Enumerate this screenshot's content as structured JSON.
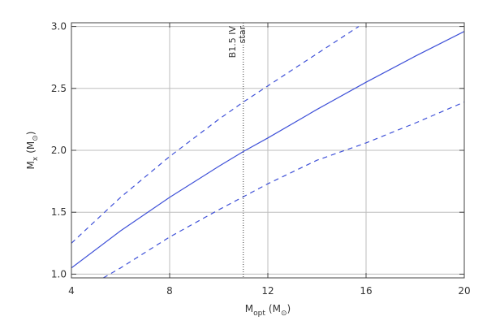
{
  "chart_data": {
    "type": "line",
    "title": "",
    "xlabel": {
      "main": "M",
      "sub": "opt",
      "unit_open": "(M",
      "unit_sub": "⊙",
      "unit_close": ")"
    },
    "ylabel": {
      "main": "M",
      "sub": "x",
      "unit_open": "(M",
      "unit_sub": "⊙",
      "unit_close": ")"
    },
    "xlim": [
      4,
      20
    ],
    "ylim": [
      0.97,
      3.03
    ],
    "xticks": [
      4,
      8,
      12,
      16,
      20
    ],
    "xtick_labels": [
      "4",
      "8",
      "12",
      "16",
      "20"
    ],
    "yticks": [
      1.0,
      1.5,
      2.0,
      2.5,
      3.0
    ],
    "ytick_labels": [
      "1.0",
      "1.5",
      "2.0",
      "2.5",
      "3.0"
    ],
    "grid": true,
    "series": [
      {
        "style": "solid",
        "color": "#3f51d8",
        "x": [
          4,
          6,
          8,
          10,
          11,
          12,
          14,
          16,
          18,
          20
        ],
        "y": [
          1.05,
          1.35,
          1.62,
          1.87,
          1.99,
          2.1,
          2.33,
          2.55,
          2.76,
          2.96
        ]
      },
      {
        "style": "dashed",
        "color": "#3f51d8",
        "x": [
          4,
          6,
          8,
          10,
          11,
          12,
          14,
          15.7
        ],
        "y": [
          1.25,
          1.62,
          1.95,
          2.25,
          2.39,
          2.52,
          2.78,
          3.0
        ]
      },
      {
        "style": "dashed",
        "color": "#3f51d8",
        "x": [
          5.3,
          6,
          8,
          10,
          12,
          14,
          16,
          18,
          20
        ],
        "y": [
          0.97,
          1.05,
          1.3,
          1.52,
          1.73,
          1.92,
          2.06,
          2.22,
          2.39
        ]
      }
    ],
    "vline": {
      "x": 11,
      "style": "dotted",
      "color": "#333333",
      "label_lines": [
        "B1.5 IV",
        "star"
      ]
    }
  }
}
